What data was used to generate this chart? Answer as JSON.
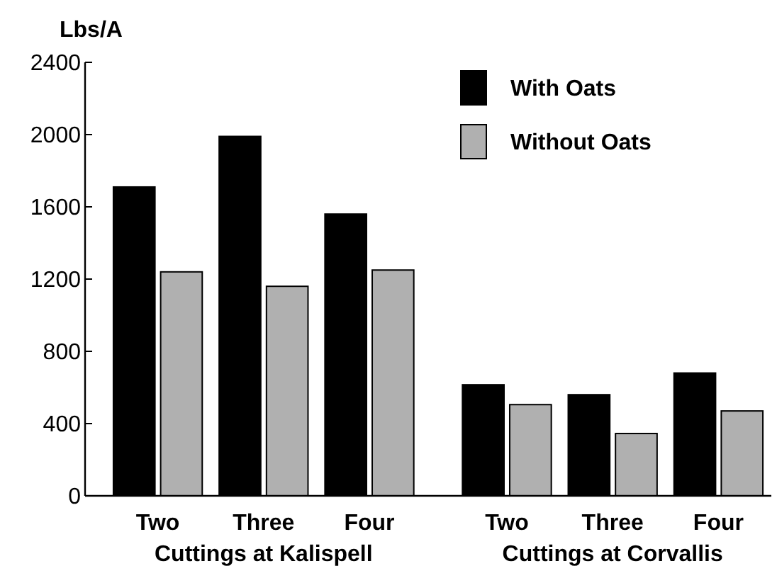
{
  "chart_data": {
    "type": "bar",
    "ylabel": "Lbs/A",
    "categories": [
      "Two",
      "Three",
      "Four",
      "Two",
      "Three",
      "Four"
    ],
    "series": [
      {
        "name": "With Oats",
        "color": "#000000",
        "values": [
          1710,
          1990,
          1560,
          615,
          560,
          680
        ]
      },
      {
        "name": "Without Oats",
        "color": "#b0b0b0",
        "values": [
          1240,
          1160,
          1250,
          505,
          345,
          470
        ]
      }
    ],
    "ylim": [
      0,
      2400
    ],
    "yticks": [
      0,
      400,
      800,
      1200,
      1600,
      2000,
      2400
    ],
    "grid": false,
    "legend": "top right",
    "annotations": [
      "Cuttings at Kalispell",
      "Cuttings at Corvallis"
    ]
  }
}
